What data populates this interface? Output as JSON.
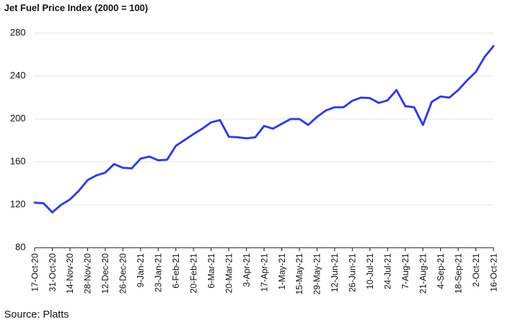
{
  "chart_data": {
    "type": "line",
    "title": "Jet Fuel Price Index (2000 = 100)",
    "source": "Source: Platts",
    "xlabel": "",
    "ylabel": "",
    "ylim": [
      80,
      280
    ],
    "yticks": [
      80,
      120,
      160,
      200,
      240,
      280
    ],
    "grid": true,
    "line_color": "#2f3ce6",
    "grid_color": "#e6e6e6",
    "x_tick_labels": [
      "17-Oct-20",
      "31-Oct-20",
      "14-Nov-20",
      "28-Nov-20",
      "12-Dec-20",
      "26-Dec-20",
      "9-Jan-21",
      "23-Jan-21",
      "6-Feb-21",
      "20-Feb-21",
      "6-Mar-21",
      "20-Mar-21",
      "3-Apr-21",
      "17-Apr-21",
      "1-May-21",
      "15-May-21",
      "29-May-21",
      "12-Jun-21",
      "26-Jun-21",
      "10-Jul-21",
      "24-Jul-21",
      "7-Aug-21",
      "21-Aug-21",
      "4-Sep-21",
      "18-Sep-21",
      "2-Oct-21",
      "16-Oct-21"
    ],
    "series": [
      {
        "name": "",
        "values": [
          122,
          121.5,
          113,
          120,
          125,
          133,
          143,
          147.5,
          150,
          158,
          154.5,
          154,
          163,
          165,
          161.5,
          162,
          175,
          180.5,
          186,
          191,
          197,
          199,
          183.5,
          183,
          182,
          183,
          193.5,
          191,
          195.5,
          200,
          200,
          194.5,
          202,
          208,
          211,
          211,
          217,
          220,
          219.5,
          215,
          217.5,
          227,
          212,
          211,
          194.5,
          216,
          221,
          220,
          227,
          236,
          244,
          258,
          268
        ]
      }
    ]
  }
}
